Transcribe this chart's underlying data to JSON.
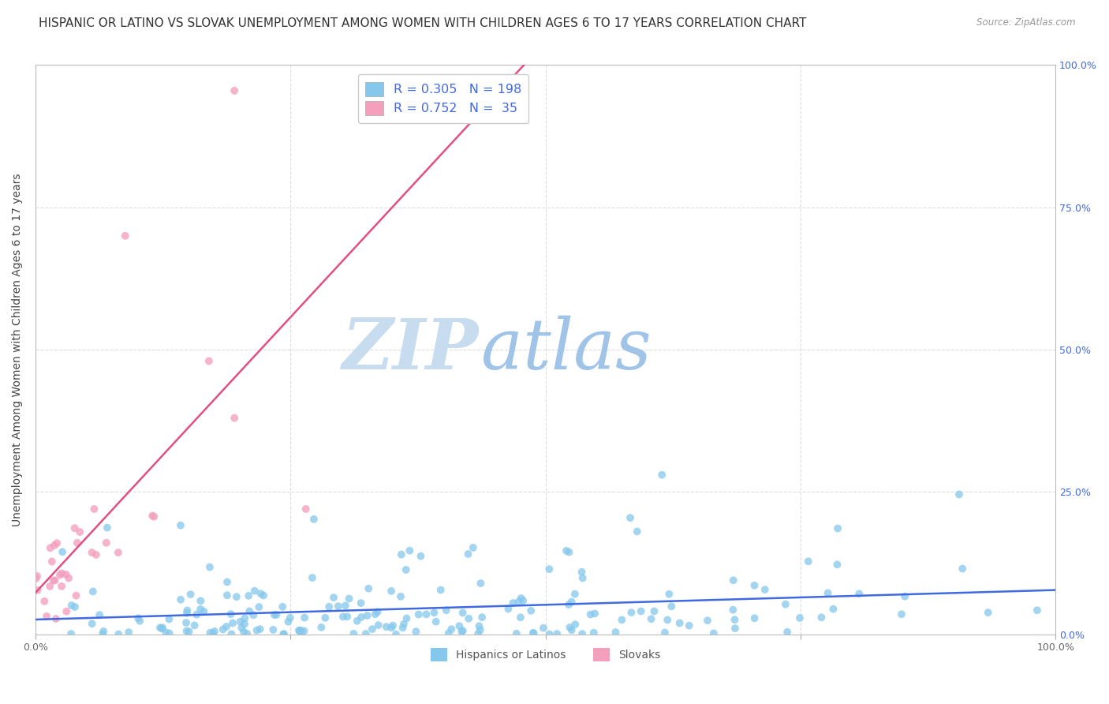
{
  "title": "HISPANIC OR LATINO VS SLOVAK UNEMPLOYMENT AMONG WOMEN WITH CHILDREN AGES 6 TO 17 YEARS CORRELATION CHART",
  "source": "Source: ZipAtlas.com",
  "ylabel": "Unemployment Among Women with Children Ages 6 to 17 years",
  "x_min": 0.0,
  "x_max": 1.0,
  "y_min": 0.0,
  "y_max": 1.0,
  "x_tick_positions": [
    0.0,
    0.25,
    0.5,
    0.75,
    1.0
  ],
  "x_tick_labels": [
    "0.0%",
    "",
    "",
    "",
    "100.0%"
  ],
  "y_tick_positions": [
    0.0,
    0.25,
    0.5,
    0.75,
    1.0
  ],
  "y_tick_labels_right": [
    "0.0%",
    "25.0%",
    "50.0%",
    "75.0%",
    "100.0%"
  ],
  "legend_entries": [
    {
      "label": "Hispanics or Latinos",
      "color": "#85C8EC",
      "line_color": "#4169E1",
      "R": 0.305,
      "N": 198
    },
    {
      "label": "Slovaks",
      "color": "#F4A0BC",
      "line_color": "#E05080",
      "R": 0.752,
      "N": 35
    }
  ],
  "watermark_zip": "ZIP",
  "watermark_atlas": "atlas",
  "watermark_color_zip": "#C8DCF0",
  "watermark_color_atlas": "#A0C4E8",
  "background_color": "#FFFFFF",
  "grid_color": "#DDDDDD",
  "title_fontsize": 11,
  "axis_label_fontsize": 10,
  "tick_fontsize": 9,
  "source_fontsize": 8.5,
  "seed_blue": 42,
  "seed_pink": 77
}
